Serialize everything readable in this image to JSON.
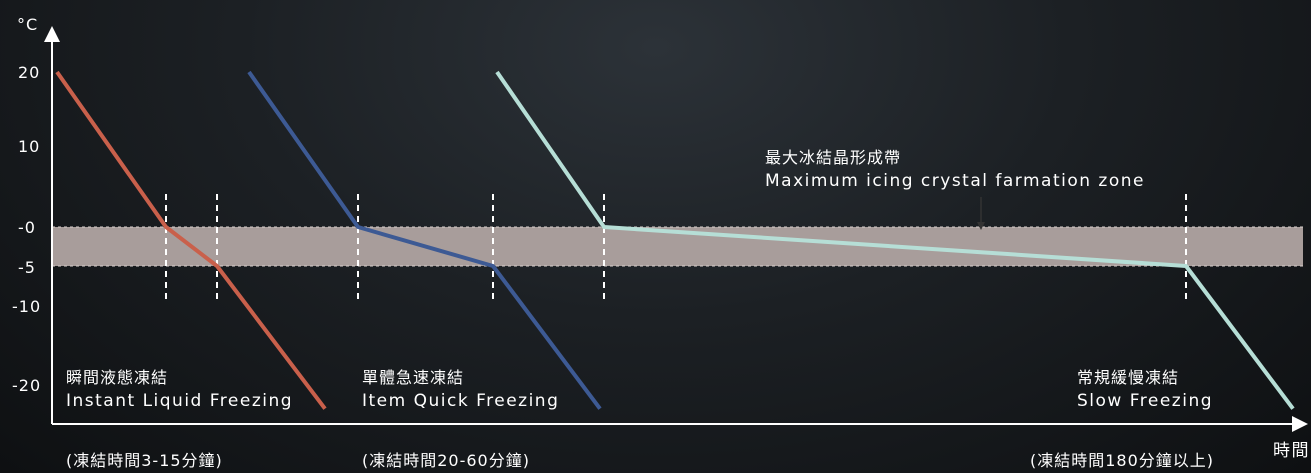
{
  "chart_data": {
    "type": "line",
    "ylabel": "°C",
    "xlabel": "時間",
    "yticks": [
      "20",
      "10",
      "-0",
      "-5",
      "-10",
      "-20"
    ],
    "zone": {
      "label_zh": "最大冰結晶形成帶",
      "label_en": "Maximum icing crystal farmation zone",
      "from": 0,
      "to": -5,
      "color": "#a89d9b"
    },
    "series": [
      {
        "name_zh": "瞬間液態凍結",
        "name_en": "Instant Liquid Freezing",
        "time_note": "(凍結時間3-15分鐘)",
        "color": "#c9604b",
        "points": [
          [
            57,
            20
          ],
          [
            166,
            0
          ],
          [
            217,
            -5
          ],
          [
            325,
            -23
          ]
        ]
      },
      {
        "name_zh": "單體急速凍結",
        "name_en": "Item Quick Freezing",
        "time_note": "(凍結時間20-60分鐘)",
        "color": "#3d5a94",
        "points": [
          [
            249,
            20
          ],
          [
            358,
            0
          ],
          [
            493,
            -5
          ],
          [
            600,
            -23
          ]
        ]
      },
      {
        "name_zh": "常規緩慢凍結",
        "name_en": "Slow Freezing",
        "time_note": "(凍結時間180分鐘以上)",
        "color": "#b6ded6",
        "points": [
          [
            497,
            20
          ],
          [
            604,
            0
          ],
          [
            1186,
            -5
          ],
          [
            1293,
            -23
          ]
        ]
      }
    ]
  }
}
